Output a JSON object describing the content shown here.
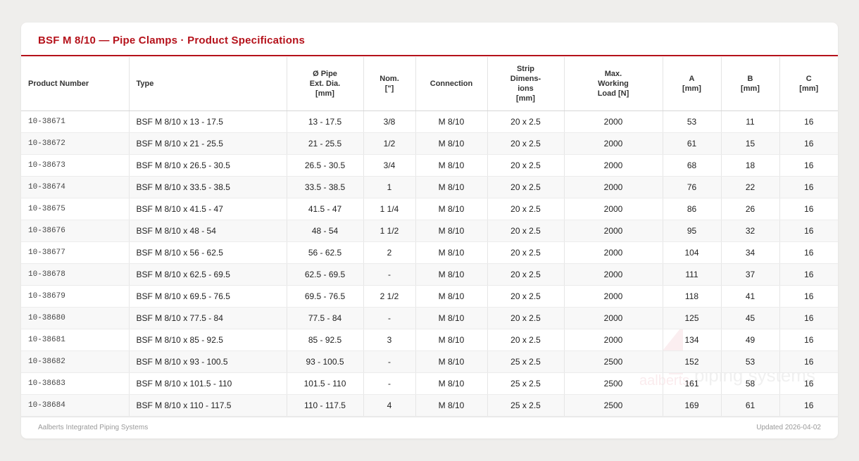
{
  "title": "BSF M 8/10 — Pipe Clamps · Product Specifications",
  "columns": [
    {
      "key": "product_number",
      "lines": [
        "Product Number"
      ]
    },
    {
      "key": "type",
      "lines": [
        "Type"
      ]
    },
    {
      "key": "pipe_ext_dia",
      "lines": [
        "Ø Pipe",
        "Ext. Dia.",
        "[mm]"
      ]
    },
    {
      "key": "nom",
      "lines": [
        "Nom.",
        "[\"]"
      ]
    },
    {
      "key": "connection",
      "lines": [
        "Connection"
      ]
    },
    {
      "key": "strip",
      "lines": [
        "Strip",
        "Dimens-",
        "ions",
        "[mm]"
      ]
    },
    {
      "key": "load",
      "lines": [
        "Max.",
        "Working",
        "Load [N]"
      ]
    },
    {
      "key": "a",
      "lines": [
        "A",
        "[mm]"
      ]
    },
    {
      "key": "b",
      "lines": [
        "B",
        "[mm]"
      ]
    },
    {
      "key": "c",
      "lines": [
        "C",
        "[mm]"
      ]
    }
  ],
  "rows": [
    [
      "10-38671",
      "BSF M 8/10 x 13 - 17.5",
      "13 - 17.5",
      "3/8",
      "M 8/10",
      "20 x 2.5",
      "2000",
      "53",
      "11",
      "16"
    ],
    [
      "10-38672",
      "BSF M 8/10 x 21 - 25.5",
      "21 - 25.5",
      "1/2",
      "M 8/10",
      "20 x 2.5",
      "2000",
      "61",
      "15",
      "16"
    ],
    [
      "10-38673",
      "BSF M 8/10 x 26.5 - 30.5",
      "26.5 - 30.5",
      "3/4",
      "M 8/10",
      "20 x 2.5",
      "2000",
      "68",
      "18",
      "16"
    ],
    [
      "10-38674",
      "BSF M 8/10 x 33.5 - 38.5",
      "33.5 - 38.5",
      "1",
      "M 8/10",
      "20 x 2.5",
      "2000",
      "76",
      "22",
      "16"
    ],
    [
      "10-38675",
      "BSF M 8/10 x 41.5 - 47",
      "41.5 - 47",
      "1 1/4",
      "M 8/10",
      "20 x 2.5",
      "2000",
      "86",
      "26",
      "16"
    ],
    [
      "10-38676",
      "BSF M 8/10 x 48 - 54",
      "48 - 54",
      "1 1/2",
      "M 8/10",
      "20 x 2.5",
      "2000",
      "95",
      "32",
      "16"
    ],
    [
      "10-38677",
      "BSF M 8/10 x 56 - 62.5",
      "56 - 62.5",
      "2",
      "M 8/10",
      "20 x 2.5",
      "2000",
      "104",
      "34",
      "16"
    ],
    [
      "10-38678",
      "BSF M 8/10 x 62.5 - 69.5",
      "62.5 - 69.5",
      "-",
      "M 8/10",
      "20 x 2.5",
      "2000",
      "111",
      "37",
      "16"
    ],
    [
      "10-38679",
      "BSF M 8/10 x 69.5 - 76.5",
      "69.5 - 76.5",
      "2 1/2",
      "M 8/10",
      "20 x 2.5",
      "2000",
      "118",
      "41",
      "16"
    ],
    [
      "10-38680",
      "BSF M 8/10 x 77.5 - 84",
      "77.5 - 84",
      "-",
      "M 8/10",
      "20 x 2.5",
      "2000",
      "125",
      "45",
      "16"
    ],
    [
      "10-38681",
      "BSF M 8/10 x 85 - 92.5",
      "85 - 92.5",
      "3",
      "M 8/10",
      "20 x 2.5",
      "2000",
      "134",
      "49",
      "16"
    ],
    [
      "10-38682",
      "BSF M 8/10 x 93 - 100.5",
      "93 - 100.5",
      "-",
      "M 8/10",
      "25 x 2.5",
      "2500",
      "152",
      "53",
      "16"
    ],
    [
      "10-38683",
      "BSF M 8/10 x 101.5 - 110",
      "101.5 - 110",
      "-",
      "M 8/10",
      "25 x 2.5",
      "2500",
      "161",
      "58",
      "16"
    ],
    [
      "10-38684",
      "BSF M 8/10 x 110 - 117.5",
      "110 - 117.5",
      "4",
      "M 8/10",
      "25 x 2.5",
      "2500",
      "169",
      "61",
      "16"
    ]
  ],
  "watermark": {
    "text_1": "aalberts",
    "text_2": "piping systems",
    "color": "#c8102e"
  },
  "footer": {
    "left": "Aalberts Integrated Piping Systems",
    "right": "Updated 2026-04-02"
  },
  "colors": {
    "accent": "#b5121b",
    "background": "#efeeec"
  }
}
